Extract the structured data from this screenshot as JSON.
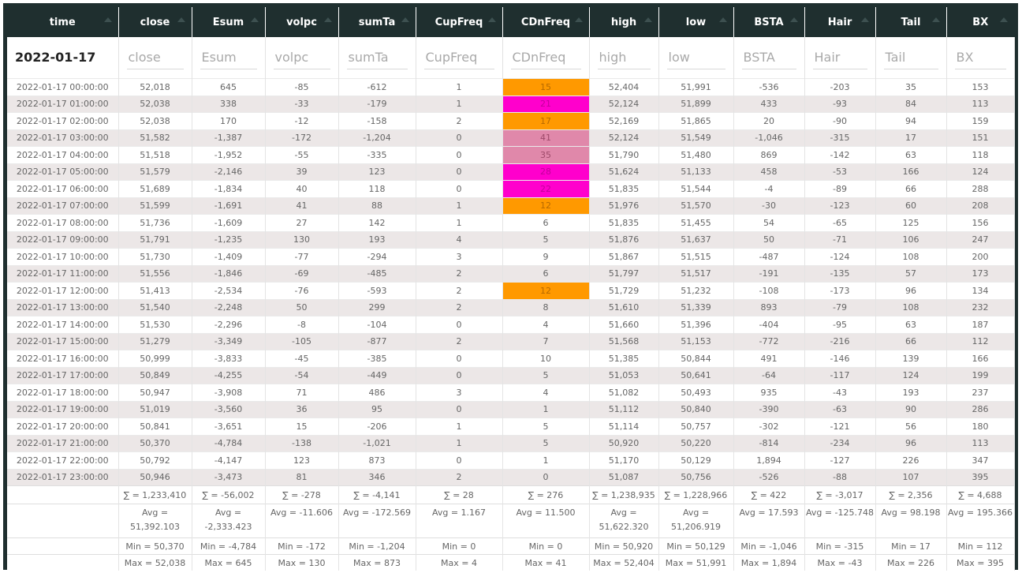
{
  "columns": [
    "time",
    "close",
    "Esum",
    "volpc",
    "sumTa",
    "CupFreq",
    "CDnFreq",
    "high",
    "low",
    "BSTA",
    "Hair",
    "Tail",
    "BX"
  ],
  "filters": [
    "2022-01-17",
    "close",
    "Esum",
    "volpc",
    "sumTa",
    "CupFreq",
    "CDnFreq",
    "high",
    "low",
    "BSTA",
    "Hair",
    "Tail",
    "BX"
  ],
  "rows": [
    [
      "2022-01-17 00:00:00",
      "52,018",
      "645",
      "-85",
      "-612",
      "1",
      "15",
      "52,404",
      "51,991",
      "-536",
      "-203",
      "35",
      "153"
    ],
    [
      "2022-01-17 01:00:00",
      "52,038",
      "338",
      "-33",
      "-179",
      "1",
      "21",
      "52,124",
      "51,899",
      "433",
      "-93",
      "84",
      "113"
    ],
    [
      "2022-01-17 02:00:00",
      "52,038",
      "170",
      "-12",
      "-158",
      "2",
      "17",
      "52,169",
      "51,865",
      "20",
      "-90",
      "94",
      "159"
    ],
    [
      "2022-01-17 03:00:00",
      "51,582",
      "-1,387",
      "-172",
      "-1,204",
      "0",
      "41",
      "52,124",
      "51,549",
      "-1,046",
      "-315",
      "17",
      "151"
    ],
    [
      "2022-01-17 04:00:00",
      "51,518",
      "-1,952",
      "-55",
      "-335",
      "0",
      "35",
      "51,790",
      "51,480",
      "869",
      "-142",
      "63",
      "118"
    ],
    [
      "2022-01-17 05:00:00",
      "51,579",
      "-2,146",
      "39",
      "123",
      "0",
      "28",
      "51,624",
      "51,133",
      "458",
      "-53",
      "166",
      "124"
    ],
    [
      "2022-01-17 06:00:00",
      "51,689",
      "-1,834",
      "40",
      "118",
      "0",
      "22",
      "51,835",
      "51,544",
      "-4",
      "-89",
      "66",
      "288"
    ],
    [
      "2022-01-17 07:00:00",
      "51,599",
      "-1,691",
      "41",
      "88",
      "1",
      "12",
      "51,976",
      "51,570",
      "-30",
      "-123",
      "60",
      "208"
    ],
    [
      "2022-01-17 08:00:00",
      "51,736",
      "-1,609",
      "27",
      "142",
      "1",
      "6",
      "51,835",
      "51,455",
      "54",
      "-65",
      "125",
      "156"
    ],
    [
      "2022-01-17 09:00:00",
      "51,791",
      "-1,235",
      "130",
      "193",
      "4",
      "5",
      "51,876",
      "51,637",
      "50",
      "-71",
      "106",
      "247"
    ],
    [
      "2022-01-17 10:00:00",
      "51,730",
      "-1,409",
      "-77",
      "-294",
      "3",
      "9",
      "51,867",
      "51,515",
      "-487",
      "-124",
      "108",
      "200"
    ],
    [
      "2022-01-17 11:00:00",
      "51,556",
      "-1,846",
      "-69",
      "-485",
      "2",
      "6",
      "51,797",
      "51,517",
      "-191",
      "-135",
      "57",
      "173"
    ],
    [
      "2022-01-17 12:00:00",
      "51,413",
      "-2,534",
      "-76",
      "-593",
      "2",
      "12",
      "51,729",
      "51,232",
      "-108",
      "-173",
      "96",
      "134"
    ],
    [
      "2022-01-17 13:00:00",
      "51,540",
      "-2,248",
      "50",
      "299",
      "2",
      "8",
      "51,610",
      "51,339",
      "893",
      "-79",
      "108",
      "232"
    ],
    [
      "2022-01-17 14:00:00",
      "51,530",
      "-2,296",
      "-8",
      "-104",
      "0",
      "4",
      "51,660",
      "51,396",
      "-404",
      "-95",
      "63",
      "187"
    ],
    [
      "2022-01-17 15:00:00",
      "51,279",
      "-3,349",
      "-105",
      "-877",
      "2",
      "7",
      "51,568",
      "51,153",
      "-772",
      "-216",
      "66",
      "112"
    ],
    [
      "2022-01-17 16:00:00",
      "50,999",
      "-3,833",
      "-45",
      "-385",
      "0",
      "10",
      "51,385",
      "50,844",
      "491",
      "-146",
      "139",
      "166"
    ],
    [
      "2022-01-17 17:00:00",
      "50,849",
      "-4,255",
      "-54",
      "-449",
      "0",
      "5",
      "51,053",
      "50,641",
      "-64",
      "-117",
      "124",
      "199"
    ],
    [
      "2022-01-17 18:00:00",
      "50,947",
      "-3,908",
      "71",
      "486",
      "3",
      "4",
      "51,082",
      "50,493",
      "935",
      "-43",
      "193",
      "237"
    ],
    [
      "2022-01-17 19:00:00",
      "51,019",
      "-3,560",
      "36",
      "95",
      "0",
      "1",
      "51,112",
      "50,840",
      "-390",
      "-63",
      "90",
      "286"
    ],
    [
      "2022-01-17 20:00:00",
      "50,841",
      "-3,651",
      "15",
      "-206",
      "1",
      "5",
      "51,114",
      "50,757",
      "-302",
      "-121",
      "56",
      "180"
    ],
    [
      "2022-01-17 21:00:00",
      "50,370",
      "-4,784",
      "-138",
      "-1,021",
      "1",
      "5",
      "50,920",
      "50,220",
      "-814",
      "-234",
      "96",
      "113"
    ],
    [
      "2022-01-17 22:00:00",
      "50,792",
      "-4,147",
      "123",
      "873",
      "0",
      "1",
      "51,170",
      "50,129",
      "1,894",
      "-127",
      "226",
      "347"
    ],
    [
      "2022-01-17 23:00:00",
      "50,946",
      "-3,473",
      "81",
      "346",
      "2",
      "0",
      "51,087",
      "50,756",
      "-526",
      "-88",
      "107",
      "395"
    ]
  ],
  "highlights": {
    "orange": "#ff9900",
    "magenta": "#ff00cc",
    "pink": "#e088aa",
    "cdnfreq_cells": [
      "orange",
      "magenta",
      "orange",
      "pink",
      "pink",
      "magenta",
      "magenta",
      "orange",
      "",
      "",
      "",
      "",
      "orange",
      "",
      "",
      "",
      "",
      "",
      "",
      "",
      "",
      "",
      "",
      ""
    ]
  },
  "summary": {
    "sum": [
      "",
      "∑ = 1,233,410",
      "∑ = -56,002",
      "∑ = -278",
      "∑ = -4,141",
      "∑ = 28",
      "∑ = 276",
      "∑ = 1,238,935",
      "∑ = 1,228,966",
      "∑ = 422",
      "∑ = -3,017",
      "∑ = 2,356",
      "∑ = 4,688"
    ],
    "avg": [
      "",
      "Avg = 51,392.103",
      "Avg = -2,333.423",
      "Avg = -11.606",
      "Avg = -172.569",
      "Avg = 1.167",
      "Avg = 11.500",
      "Avg = 51,622.320",
      "Avg = 51,206.919",
      "Avg = 17.593",
      "Avg = -125.748",
      "Avg = 98.198",
      "Avg = 195.366"
    ],
    "min": [
      "",
      "Min = 50,370",
      "Min = -4,784",
      "Min = -172",
      "Min = -1,204",
      "Min = 0",
      "Min = 0",
      "Min = 50,920",
      "Min = 50,129",
      "Min = -1,046",
      "Min = -315",
      "Min = 17",
      "Min = 112"
    ],
    "max": [
      "",
      "Max = 52,038",
      "Max = 645",
      "Max = 130",
      "Max = 873",
      "Max = 4",
      "Max = 41",
      "Max = 52,404",
      "Max = 51,991",
      "Max = 1,894",
      "Max = -43",
      "Max = 226",
      "Max = 395"
    ]
  }
}
